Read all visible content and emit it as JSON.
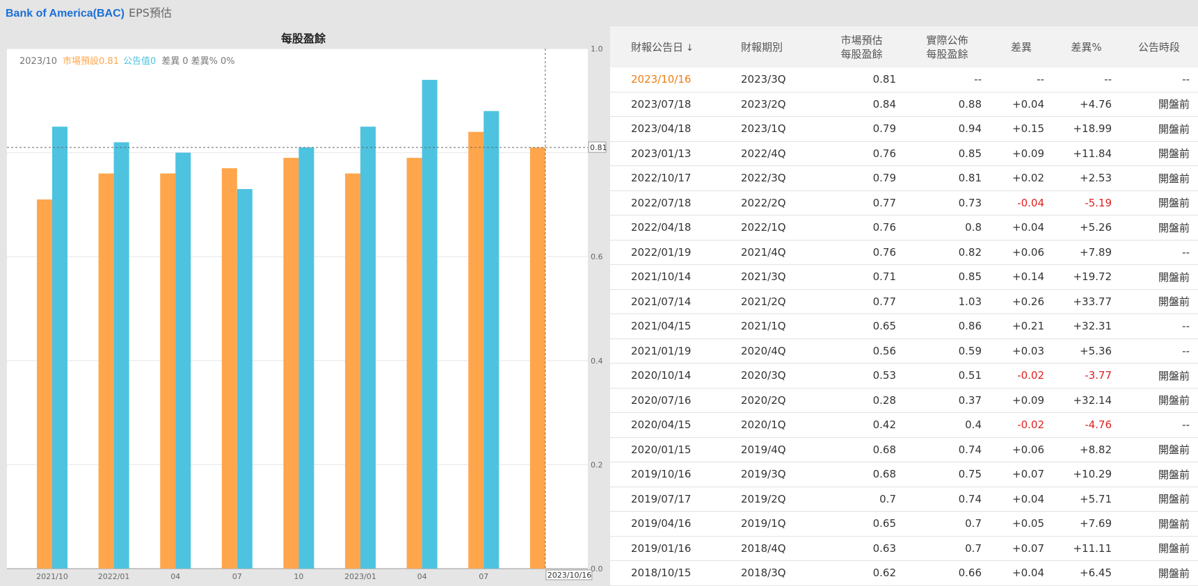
{
  "header": {
    "company": "Bank of America(BAC)",
    "tag": "EPS預估"
  },
  "chart": {
    "title": "每股盈餘",
    "info": {
      "date": "2023/10",
      "est_label": "市場預設",
      "est_value": "0.81",
      "act_label": "公告值",
      "act_value": "0",
      "diff_label": "差異",
      "diff_value": "0",
      "diffpct_label": "差異%",
      "diffpct_value": "0%"
    },
    "crosshair": {
      "y_label": "0.81",
      "x_label": "2023/10/16"
    }
  },
  "chart_data": {
    "type": "bar",
    "categories": [
      "2021/10",
      "2022/01",
      "04",
      "07",
      "10",
      "2023/01",
      "04",
      "07",
      ""
    ],
    "series": [
      {
        "name": "市場預設",
        "color": "#ffa64d",
        "values": [
          0.71,
          0.76,
          0.76,
          0.77,
          0.79,
          0.76,
          0.79,
          0.84,
          0.81
        ]
      },
      {
        "name": "公告值",
        "color": "#4dc3e0",
        "values": [
          0.85,
          0.82,
          0.8,
          0.73,
          0.81,
          0.85,
          0.94,
          0.88,
          null
        ]
      }
    ],
    "ylim": [
      0,
      1.0
    ],
    "yticks": [
      0.0,
      0.2,
      0.4,
      0.6,
      0.8,
      1.0
    ],
    "ytick_labels": [
      "0.0",
      "0.2",
      "0.4",
      "0.6",
      "",
      "1.0"
    ],
    "grid": true
  },
  "table": {
    "headers": [
      {
        "l1": "財報公告日",
        "l2": "",
        "arrow": "↓"
      },
      {
        "l1": "財報期別",
        "l2": ""
      },
      {
        "l1": "市場預估",
        "l2": "每股盈餘"
      },
      {
        "l1": "實際公佈",
        "l2": "每股盈餘"
      },
      {
        "l1": "差異",
        "l2": ""
      },
      {
        "l1": "差異%",
        "l2": ""
      },
      {
        "l1": "公告時段",
        "l2": ""
      }
    ],
    "rows": [
      {
        "date": "2023/10/16",
        "period": "2023/3Q",
        "est": "0.81",
        "act": "--",
        "diff": "--",
        "pct": "--",
        "time": "--",
        "current": true
      },
      {
        "date": "2023/07/18",
        "period": "2023/2Q",
        "est": "0.84",
        "act": "0.88",
        "diff": "+0.04",
        "pct": "+4.76",
        "time": "開盤前"
      },
      {
        "date": "2023/04/18",
        "period": "2023/1Q",
        "est": "0.79",
        "act": "0.94",
        "diff": "+0.15",
        "pct": "+18.99",
        "time": "開盤前"
      },
      {
        "date": "2023/01/13",
        "period": "2022/4Q",
        "est": "0.76",
        "act": "0.85",
        "diff": "+0.09",
        "pct": "+11.84",
        "time": "開盤前"
      },
      {
        "date": "2022/10/17",
        "period": "2022/3Q",
        "est": "0.79",
        "act": "0.81",
        "diff": "+0.02",
        "pct": "+2.53",
        "time": "開盤前"
      },
      {
        "date": "2022/07/18",
        "period": "2022/2Q",
        "est": "0.77",
        "act": "0.73",
        "diff": "-0.04",
        "pct": "-5.19",
        "time": "開盤前",
        "neg": true
      },
      {
        "date": "2022/04/18",
        "period": "2022/1Q",
        "est": "0.76",
        "act": "0.8",
        "diff": "+0.04",
        "pct": "+5.26",
        "time": "開盤前"
      },
      {
        "date": "2022/01/19",
        "period": "2021/4Q",
        "est": "0.76",
        "act": "0.82",
        "diff": "+0.06",
        "pct": "+7.89",
        "time": "--"
      },
      {
        "date": "2021/10/14",
        "period": "2021/3Q",
        "est": "0.71",
        "act": "0.85",
        "diff": "+0.14",
        "pct": "+19.72",
        "time": "開盤前"
      },
      {
        "date": "2021/07/14",
        "period": "2021/2Q",
        "est": "0.77",
        "act": "1.03",
        "diff": "+0.26",
        "pct": "+33.77",
        "time": "開盤前"
      },
      {
        "date": "2021/04/15",
        "period": "2021/1Q",
        "est": "0.65",
        "act": "0.86",
        "diff": "+0.21",
        "pct": "+32.31",
        "time": "--"
      },
      {
        "date": "2021/01/19",
        "period": "2020/4Q",
        "est": "0.56",
        "act": "0.59",
        "diff": "+0.03",
        "pct": "+5.36",
        "time": "--"
      },
      {
        "date": "2020/10/14",
        "period": "2020/3Q",
        "est": "0.53",
        "act": "0.51",
        "diff": "-0.02",
        "pct": "-3.77",
        "time": "開盤前",
        "neg": true
      },
      {
        "date": "2020/07/16",
        "period": "2020/2Q",
        "est": "0.28",
        "act": "0.37",
        "diff": "+0.09",
        "pct": "+32.14",
        "time": "開盤前"
      },
      {
        "date": "2020/04/15",
        "period": "2020/1Q",
        "est": "0.42",
        "act": "0.4",
        "diff": "-0.02",
        "pct": "-4.76",
        "time": "--",
        "neg": true
      },
      {
        "date": "2020/01/15",
        "period": "2019/4Q",
        "est": "0.68",
        "act": "0.74",
        "diff": "+0.06",
        "pct": "+8.82",
        "time": "開盤前"
      },
      {
        "date": "2019/10/16",
        "period": "2019/3Q",
        "est": "0.68",
        "act": "0.75",
        "diff": "+0.07",
        "pct": "+10.29",
        "time": "開盤前"
      },
      {
        "date": "2019/07/17",
        "period": "2019/2Q",
        "est": "0.7",
        "act": "0.74",
        "diff": "+0.04",
        "pct": "+5.71",
        "time": "開盤前"
      },
      {
        "date": "2019/04/16",
        "period": "2019/1Q",
        "est": "0.65",
        "act": "0.7",
        "diff": "+0.05",
        "pct": "+7.69",
        "time": "開盤前"
      },
      {
        "date": "2019/01/16",
        "period": "2018/4Q",
        "est": "0.63",
        "act": "0.7",
        "diff": "+0.07",
        "pct": "+11.11",
        "time": "開盤前"
      },
      {
        "date": "2018/10/15",
        "period": "2018/3Q",
        "est": "0.62",
        "act": "0.66",
        "diff": "+0.04",
        "pct": "+6.45",
        "time": "開盤前"
      }
    ]
  },
  "colors": {
    "estimate": "#ffa64d",
    "actual": "#4dc3e0",
    "negative": "#e02020",
    "current_date": "#ee7d11",
    "link": "#1a6fd6"
  }
}
